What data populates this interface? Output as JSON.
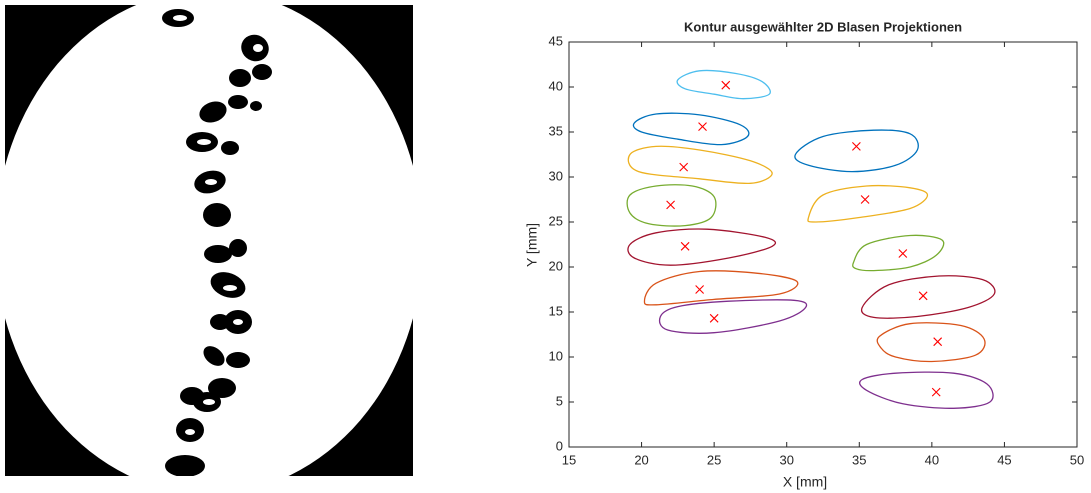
{
  "chart_data": {
    "type": "contour",
    "title": "Kontur ausgewählter 2D Blasen Projektionen",
    "x_label": "X [mm]",
    "y_label": "Y [mm]",
    "xlim": [
      15,
      50
    ],
    "ylim": [
      0,
      45
    ],
    "xticks": [
      15,
      20,
      25,
      30,
      35,
      40,
      45,
      50
    ],
    "yticks": [
      0,
      5,
      10,
      15,
      20,
      25,
      30,
      35,
      40,
      45
    ],
    "marker_color": "#ff0000",
    "series": [
      {
        "color": "#4dbeee",
        "center_x": 25.8,
        "center_y": 40.2,
        "x": [
          22.5,
          24,
          26.5,
          28.3,
          28.8,
          27,
          25,
          23
        ],
        "y": [
          40.8,
          41.8,
          41.5,
          40.6,
          39.2,
          38.7,
          39.2,
          39.8
        ]
      },
      {
        "color": "#0072bd",
        "center_x": 24.2,
        "center_y": 35.6,
        "x": [
          19.5,
          21,
          24,
          26.8,
          27.3,
          25.5,
          22.5,
          20
        ],
        "y": [
          36,
          37,
          36.9,
          35.8,
          34.5,
          33.6,
          34.2,
          35
        ]
      },
      {
        "color": "#edb120",
        "center_x": 22.9,
        "center_y": 31.1,
        "x": [
          19.2,
          21,
          24,
          27.5,
          29,
          27.5,
          24,
          19.8
        ],
        "y": [
          32.5,
          33.4,
          33,
          31.8,
          30.4,
          29.3,
          29.8,
          30.6
        ]
      },
      {
        "color": "#77ac30",
        "center_x": 22,
        "center_y": 26.9,
        "x": [
          19.2,
          21,
          23.5,
          25,
          24.8,
          23,
          20.5,
          19.2
        ],
        "y": [
          28,
          29,
          29,
          27.8,
          25.5,
          24.6,
          24.8,
          26
        ]
      },
      {
        "color": "#a2142f",
        "center_x": 23,
        "center_y": 22.3,
        "x": [
          19.2,
          21,
          24.5,
          28.5,
          29,
          26,
          22,
          19.5
        ],
        "y": [
          22.5,
          23.8,
          24.2,
          23.3,
          22.3,
          21,
          20.2,
          21
        ]
      },
      {
        "color": "#d95319",
        "center_x": 24,
        "center_y": 17.5,
        "x": [
          20.2,
          21,
          24,
          28,
          30.7,
          29.5,
          25,
          21
        ],
        "y": [
          16.2,
          18.2,
          19.5,
          19.3,
          18.4,
          17,
          16.4,
          15.8
        ]
      },
      {
        "color": "#7e2f8e",
        "center_x": 25,
        "center_y": 14.3,
        "x": [
          21.3,
          22.5,
          26,
          30.5,
          31.3,
          29.5,
          25,
          21.8
        ],
        "y": [
          14.5,
          15.6,
          16.2,
          16.3,
          15.5,
          14,
          12.7,
          13
        ]
      },
      {
        "color": "#0072bd",
        "center_x": 34.8,
        "center_y": 33.4,
        "x": [
          30.6,
          32.5,
          36,
          38.5,
          39,
          37.5,
          34.5,
          31.5
        ],
        "y": [
          32.5,
          34.5,
          35.2,
          34.8,
          33,
          31.3,
          30.6,
          31.3
        ]
      },
      {
        "color": "#edb120",
        "center_x": 35.4,
        "center_y": 27.5,
        "x": [
          31.5,
          32.5,
          35.5,
          38.5,
          39.7,
          38.5,
          35,
          32
        ],
        "y": [
          25.5,
          28,
          29,
          28.8,
          28,
          26.5,
          25.5,
          25
        ]
      },
      {
        "color": "#77ac30",
        "center_x": 38,
        "center_y": 21.5,
        "x": [
          34.6,
          35.5,
          38.5,
          40.7,
          40.3,
          38.5,
          36,
          34.8
        ],
        "y": [
          20.5,
          22.5,
          23.5,
          23,
          21.3,
          20,
          19.6,
          19.8
        ]
      },
      {
        "color": "#a2142f",
        "center_x": 39.4,
        "center_y": 16.8,
        "x": [
          35.2,
          37,
          40.5,
          43.5,
          44.3,
          42.5,
          39,
          36
        ],
        "y": [
          15.5,
          18,
          19,
          18.6,
          17,
          15.5,
          14.5,
          14.4
        ]
      },
      {
        "color": "#d95319",
        "center_x": 40.4,
        "center_y": 11.7,
        "x": [
          36.4,
          38.5,
          42,
          43.6,
          43,
          40,
          37.5,
          36.5
        ],
        "y": [
          12.3,
          13.7,
          13.5,
          12,
          10.2,
          9.5,
          10,
          11
        ]
      },
      {
        "color": "#7e2f8e",
        "center_x": 40.3,
        "center_y": 6.1,
        "x": [
          35.2,
          37.5,
          41.5,
          43.8,
          44,
          41.5,
          38,
          35.5
        ],
        "y": [
          7.5,
          8.2,
          8.2,
          7,
          5,
          4.3,
          4.8,
          6.3
        ]
      }
    ]
  }
}
